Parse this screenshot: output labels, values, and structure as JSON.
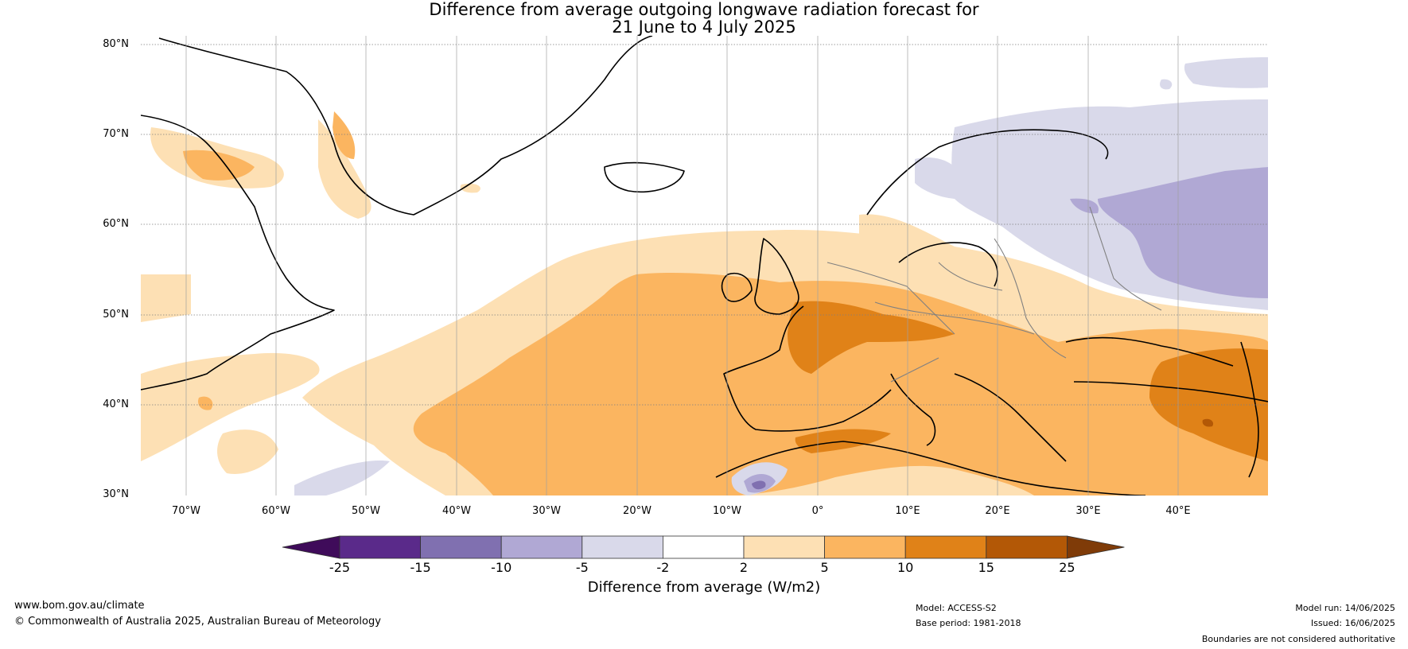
{
  "title": {
    "line1": "Difference from average outgoing longwave radiation forecast for",
    "line2": "21 June to 4 July 2025"
  },
  "map": {
    "region": "North Atlantic and Europe",
    "lat_labels": [
      "80°N",
      "70°N",
      "60°N",
      "50°N",
      "40°N",
      "30°N"
    ],
    "lon_labels": [
      "70°W",
      "60°W",
      "50°W",
      "40°W",
      "30°W",
      "20°W",
      "10°W",
      "0°",
      "10°E",
      "20°E",
      "30°E",
      "40°E"
    ],
    "extent": {
      "lon_min": -75,
      "lon_max": 50,
      "lat_min": 30,
      "lat_max": 81
    }
  },
  "colorbar": {
    "ticks": [
      "-25",
      "-15",
      "-10",
      "-5",
      "-2",
      "2",
      "5",
      "10",
      "15",
      "25"
    ],
    "colors": [
      "#3f0b5a",
      "#5a2a8a",
      "#8070b0",
      "#b0a8d4",
      "#d9d9ea",
      "#ffffff",
      "#fde0b4",
      "#fbb560",
      "#e08218",
      "#b35806",
      "#7f3b08"
    ],
    "label": "Difference from average (W/m2)"
  },
  "footer": {
    "url": "www.bom.gov.au/climate",
    "copyright": "© Commonwealth of Australia 2025, Australian Bureau of Meteorology",
    "model": "Model: ACCESS-S2",
    "base_period": "Base period: 1981-2018",
    "model_run": "Model run: 14/06/2025",
    "issued": "Issued: 16/06/2025",
    "disclaimer": "Boundaries are not considered authoritative"
  }
}
